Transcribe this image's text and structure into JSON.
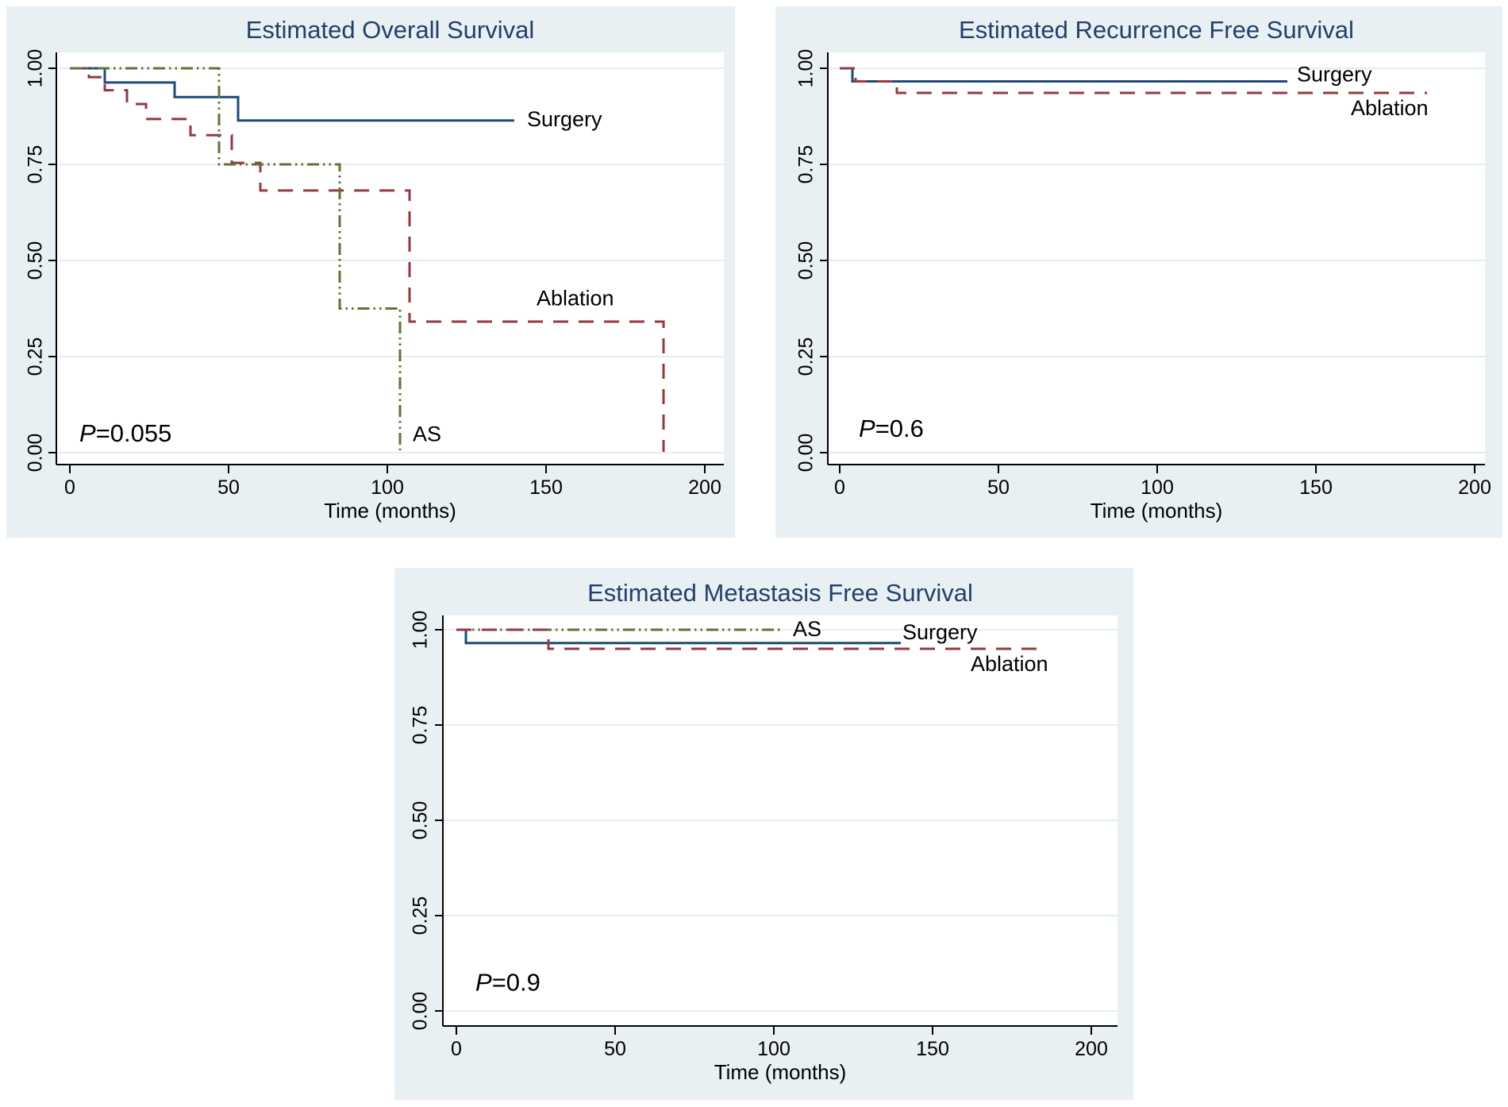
{
  "page": {
    "background": "#ffffff"
  },
  "styles": {
    "panel_bg": "#e9f0f3",
    "plot_bg": "#ffffff",
    "grid_color": "#e4eef0",
    "axis_color": "#000000",
    "tick_label_color": "#000000",
    "title_color": "#234069",
    "series_colors": {
      "surgery": "#1d4a77",
      "ablation": "#943a40",
      "as": "#5f7433"
    }
  },
  "chart_data": [
    {
      "id": "overall-survival",
      "type": "line",
      "step": true,
      "title": "Estimated Overall Survival",
      "xlabel": "Time (months)",
      "ylabel": "",
      "xlim": [
        0,
        206
      ],
      "ylim": [
        0,
        1.0
      ],
      "grid": "horizontal",
      "x_ticks": [
        {
          "label": "0",
          "value": 0
        },
        {
          "label": "50",
          "value": 50
        },
        {
          "label": "100",
          "value": 100
        },
        {
          "label": "150",
          "value": 150
        },
        {
          "label": "200",
          "value": 200
        }
      ],
      "y_ticks": [
        {
          "label": "0.00",
          "value": 0
        },
        {
          "label": "0.25",
          "value": 0.25
        },
        {
          "label": "0.50",
          "value": 0.5
        },
        {
          "label": "0.75",
          "value": 0.75
        },
        {
          "label": "1.00",
          "value": 1.0
        }
      ],
      "p_value": {
        "prefix": "P",
        "rest": "=0.055",
        "x": 3,
        "y": 0.045
      },
      "series": [
        {
          "name": "Surgery",
          "color_key": "surgery",
          "dash": "solid",
          "points": [
            [
              0,
              1
            ],
            [
              11,
              1
            ],
            [
              11,
              0.963
            ],
            [
              33,
              0.963
            ],
            [
              33,
              0.925
            ],
            [
              53,
              0.925
            ],
            [
              53,
              0.864
            ],
            [
              140,
              0.864
            ]
          ],
          "label": {
            "text": "Surgery",
            "x": 144,
            "y": 0.864,
            "anchor": "start"
          }
        },
        {
          "name": "Ablation",
          "color_key": "ablation",
          "dash": "long-dash",
          "points": [
            [
              0,
              1
            ],
            [
              6,
              1
            ],
            [
              6,
              0.977
            ],
            [
              11,
              0.977
            ],
            [
              11,
              0.943
            ],
            [
              18,
              0.943
            ],
            [
              18,
              0.907
            ],
            [
              24,
              0.907
            ],
            [
              24,
              0.868
            ],
            [
              38,
              0.868
            ],
            [
              38,
              0.826
            ],
            [
              51,
              0.826
            ],
            [
              51,
              0.754
            ],
            [
              60,
              0.754
            ],
            [
              60,
              0.682
            ],
            [
              107,
              0.682
            ],
            [
              107,
              0.341
            ],
            [
              187,
              0.341
            ],
            [
              187,
              0.002
            ]
          ],
          "label": {
            "text": "Ablation",
            "x": 147,
            "y": 0.398,
            "anchor": "start"
          }
        },
        {
          "name": "AS",
          "color_key": "as",
          "dash": "dash-dot-dot",
          "points": [
            [
              0,
              1
            ],
            [
              47,
              1
            ],
            [
              47,
              0.75
            ],
            [
              85,
              0.75
            ],
            [
              85,
              0.375
            ],
            [
              104,
              0.375
            ],
            [
              104,
              0.006
            ]
          ],
          "label": {
            "text": "AS",
            "x": 108,
            "y": 0.045,
            "anchor": "start"
          }
        }
      ]
    },
    {
      "id": "recurrence-free-survival",
      "type": "line",
      "step": true,
      "title": "Estimated Recurrence Free Survival",
      "xlabel": "Time (months)",
      "ylabel": "",
      "xlim": [
        0,
        206
      ],
      "ylim": [
        0,
        1.0
      ],
      "grid": "horizontal",
      "x_ticks": [
        {
          "label": "0",
          "value": 0
        },
        {
          "label": "50",
          "value": 50
        },
        {
          "label": "100",
          "value": 100
        },
        {
          "label": "150",
          "value": 150
        },
        {
          "label": "200",
          "value": 200
        }
      ],
      "y_ticks": [
        {
          "label": "0.00",
          "value": 0
        },
        {
          "label": "0.25",
          "value": 0.25
        },
        {
          "label": "0.50",
          "value": 0.5
        },
        {
          "label": "0.75",
          "value": 0.75
        },
        {
          "label": "1.00",
          "value": 1.0
        }
      ],
      "p_value": {
        "prefix": "P",
        "rest": "=0.6",
        "x": 6,
        "y": 0.058
      },
      "series": [
        {
          "name": "Surgery",
          "color_key": "surgery",
          "dash": "solid",
          "points": [
            [
              0,
              1
            ],
            [
              4,
              1
            ],
            [
              4,
              0.966
            ],
            [
              141,
              0.966
            ]
          ],
          "label": {
            "text": "Surgery",
            "x": 144,
            "y": 0.981,
            "anchor": "start"
          }
        },
        {
          "name": "Ablation",
          "color_key": "ablation",
          "dash": "long-dash",
          "points": [
            [
              0,
              1
            ],
            [
              5,
              1
            ],
            [
              5,
              0.966
            ],
            [
              18,
              0.966
            ],
            [
              18,
              0.936
            ],
            [
              185,
              0.936
            ]
          ],
          "label": {
            "text": "Ablation",
            "x": 161,
            "y": 0.893,
            "anchor": "start"
          }
        }
      ]
    },
    {
      "id": "metastasis-free-survival",
      "type": "line",
      "step": true,
      "title": "Estimated Metastasis Free Survival",
      "xlabel": "Time (months)",
      "ylabel": "",
      "xlim": [
        0,
        206
      ],
      "ylim": [
        0,
        1.0
      ],
      "grid": "horizontal",
      "x_ticks": [
        {
          "label": "0",
          "value": 0
        },
        {
          "label": "50",
          "value": 50
        },
        {
          "label": "100",
          "value": 100
        },
        {
          "label": "150",
          "value": 150
        },
        {
          "label": "200",
          "value": 200
        }
      ],
      "y_ticks": [
        {
          "label": "0.00",
          "value": 0
        },
        {
          "label": "0.25",
          "value": 0.25
        },
        {
          "label": "0.50",
          "value": 0.5
        },
        {
          "label": "0.75",
          "value": 0.75
        },
        {
          "label": "1.00",
          "value": 1.0
        }
      ],
      "p_value": {
        "prefix": "P",
        "rest": "=0.9",
        "x": 6,
        "y": 0.07
      },
      "series": [
        {
          "name": "AS",
          "color_key": "as",
          "dash": "dash-dot-dot",
          "points": [
            [
              0,
              1
            ],
            [
              103,
              1
            ]
          ],
          "label": {
            "text": "AS",
            "x": 106,
            "y": 0.998,
            "anchor": "start"
          }
        },
        {
          "name": "Surgery",
          "color_key": "surgery",
          "dash": "solid",
          "points": [
            [
              0,
              1
            ],
            [
              3,
              1
            ],
            [
              3,
              0.965
            ],
            [
              140,
              0.965
            ]
          ],
          "label": {
            "text": "Surgery",
            "x": 140.5,
            "y": 0.99,
            "anchor": "start"
          }
        },
        {
          "name": "Ablation",
          "color_key": "ablation",
          "dash": "long-dash",
          "points": [
            [
              0,
              1
            ],
            [
              29,
              1
            ],
            [
              29,
              0.95
            ],
            [
              184,
              0.95
            ]
          ],
          "label": {
            "text": "Ablation",
            "x": 162,
            "y": 0.906,
            "anchor": "start"
          }
        }
      ]
    }
  ]
}
